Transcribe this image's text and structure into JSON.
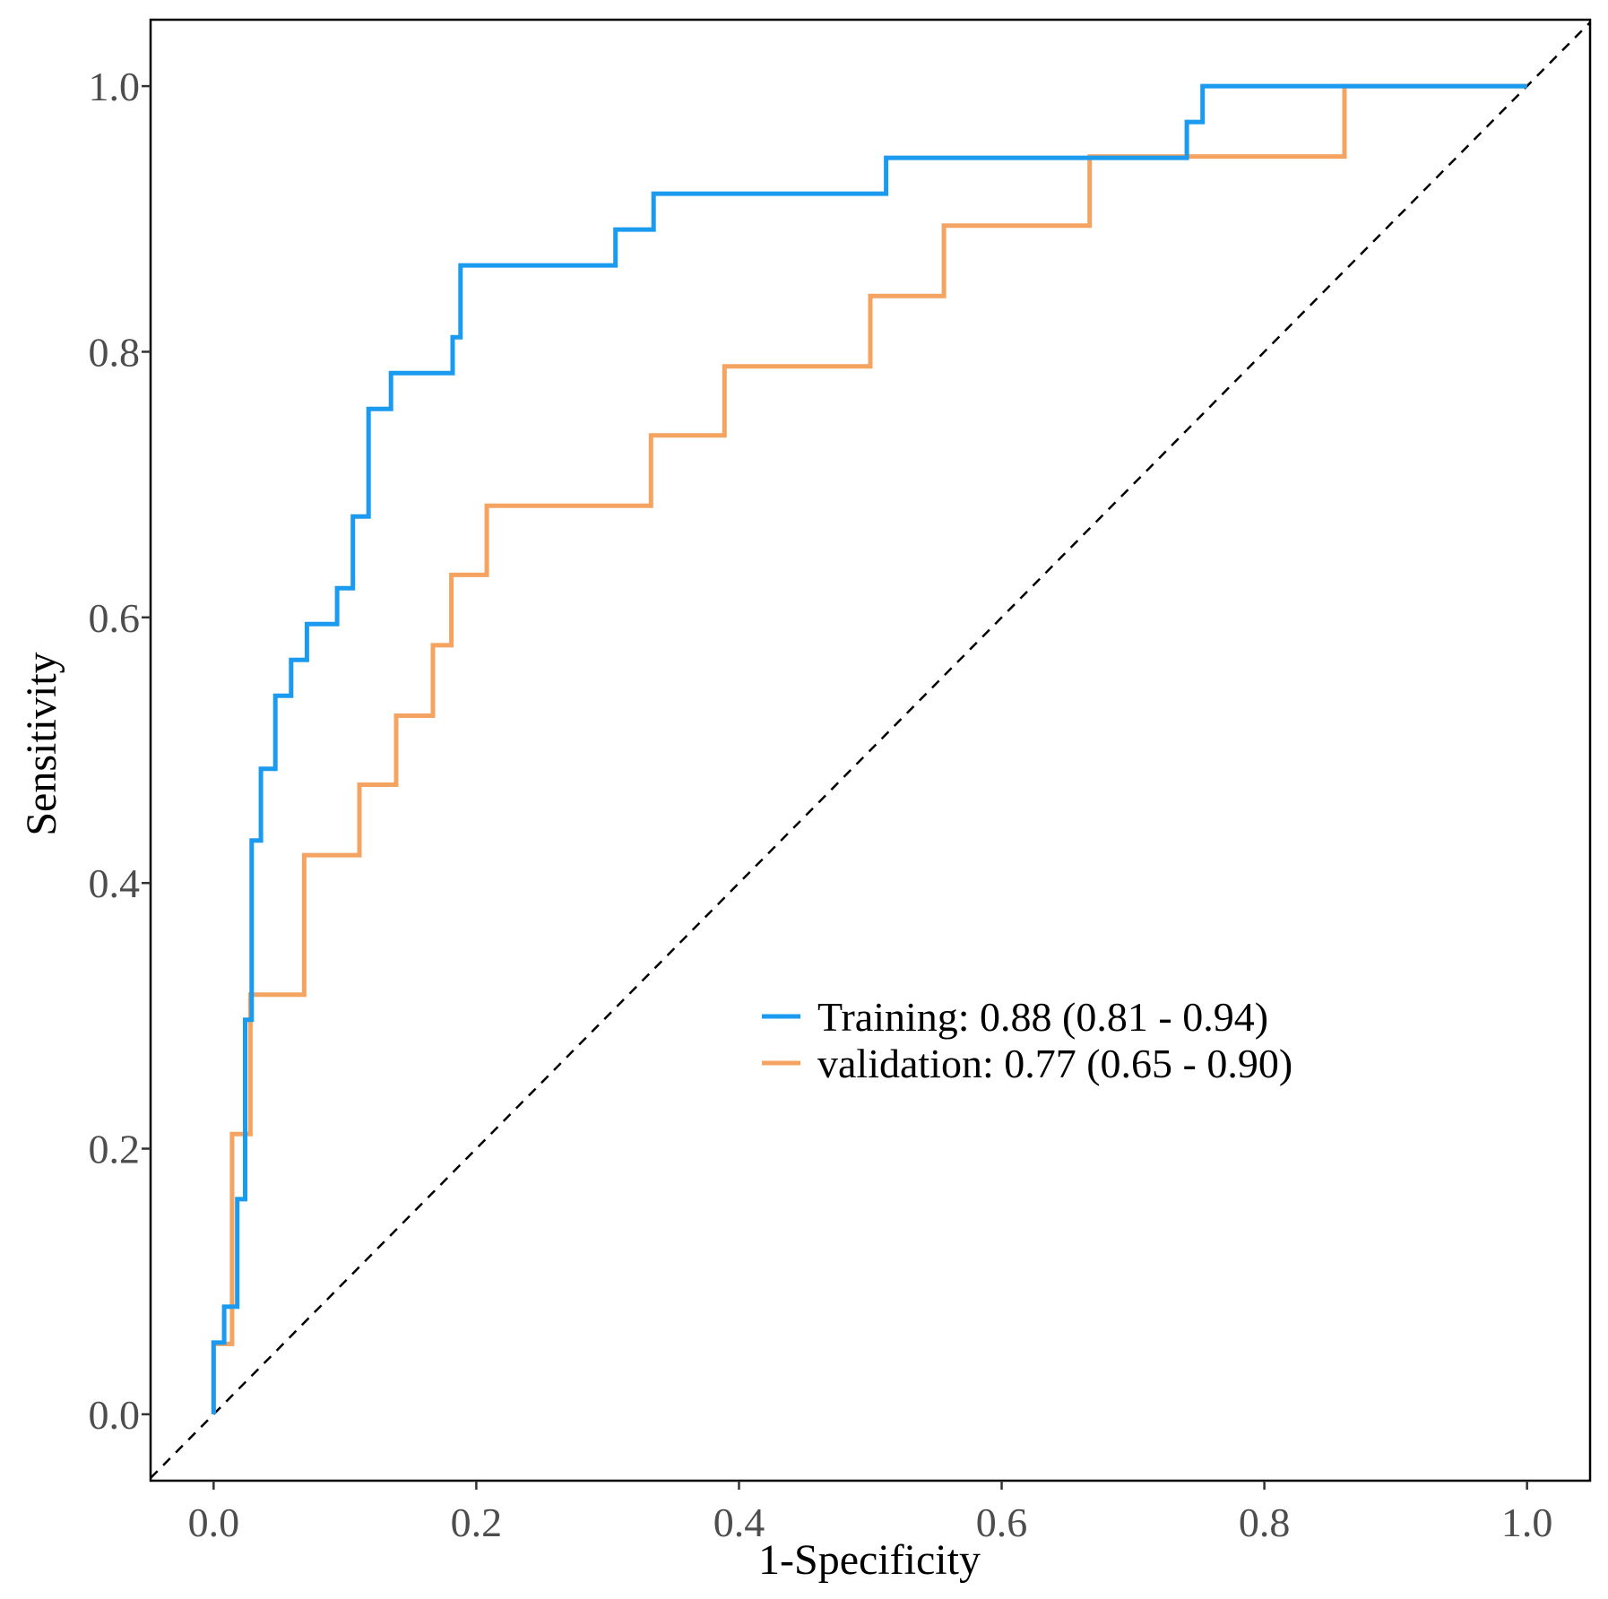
{
  "chart_data": {
    "type": "line",
    "title": "",
    "xlabel": "1-Specificity",
    "ylabel": "Sensitivity",
    "xlim": [
      -0.048,
      1.048
    ],
    "ylim": [
      -0.05,
      1.05
    ],
    "x_ticks": [
      0.0,
      0.2,
      0.4,
      0.6,
      0.8,
      1.0
    ],
    "x_tick_labels": [
      "0.0",
      "0.2",
      "0.4",
      "0.6",
      "0.8",
      "1.0"
    ],
    "y_ticks": [
      0.0,
      0.2,
      0.4,
      0.6,
      0.8,
      1.0
    ],
    "y_tick_labels": [
      "0.0",
      "0.2",
      "0.4",
      "0.6",
      "0.8",
      "1.0"
    ],
    "grid": false,
    "legend_position": "center-right",
    "reference_line": {
      "name": "chance",
      "points": [
        [
          0,
          0
        ],
        [
          1,
          1
        ]
      ],
      "style": "dashed",
      "color": "#000000"
    },
    "series": [
      {
        "name": "Training",
        "legend_label": "Training: 0.88 (0.81 - 0.94)",
        "auc": 0.88,
        "ci": [
          0.81,
          0.94
        ],
        "color": "#1a9bf0",
        "points": [
          [
            0.0,
            0.0
          ],
          [
            0.0,
            0.054
          ],
          [
            0.008,
            0.054
          ],
          [
            0.008,
            0.081
          ],
          [
            0.018,
            0.081
          ],
          [
            0.018,
            0.162
          ],
          [
            0.024,
            0.162
          ],
          [
            0.024,
            0.297
          ],
          [
            0.029,
            0.297
          ],
          [
            0.029,
            0.432
          ],
          [
            0.036,
            0.432
          ],
          [
            0.036,
            0.486
          ],
          [
            0.047,
            0.486
          ],
          [
            0.047,
            0.541
          ],
          [
            0.059,
            0.541
          ],
          [
            0.059,
            0.568
          ],
          [
            0.071,
            0.568
          ],
          [
            0.071,
            0.595
          ],
          [
            0.094,
            0.595
          ],
          [
            0.094,
            0.622
          ],
          [
            0.106,
            0.622
          ],
          [
            0.106,
            0.676
          ],
          [
            0.118,
            0.676
          ],
          [
            0.118,
            0.757
          ],
          [
            0.135,
            0.757
          ],
          [
            0.135,
            0.784
          ],
          [
            0.182,
            0.784
          ],
          [
            0.182,
            0.811
          ],
          [
            0.188,
            0.811
          ],
          [
            0.188,
            0.865
          ],
          [
            0.306,
            0.865
          ],
          [
            0.306,
            0.892
          ],
          [
            0.335,
            0.892
          ],
          [
            0.335,
            0.919
          ],
          [
            0.512,
            0.919
          ],
          [
            0.512,
            0.946
          ],
          [
            0.741,
            0.946
          ],
          [
            0.741,
            0.973
          ],
          [
            0.753,
            0.973
          ],
          [
            0.753,
            1.0
          ],
          [
            1.0,
            1.0
          ]
        ]
      },
      {
        "name": "validation",
        "legend_label": "validation: 0.77 (0.65 - 0.90)",
        "auc": 0.77,
        "ci": [
          0.65,
          0.9
        ],
        "color": "#f4a460",
        "points": [
          [
            0.0,
            0.0
          ],
          [
            0.0,
            0.053
          ],
          [
            0.014,
            0.053
          ],
          [
            0.014,
            0.211
          ],
          [
            0.028,
            0.211
          ],
          [
            0.028,
            0.316
          ],
          [
            0.069,
            0.316
          ],
          [
            0.069,
            0.421
          ],
          [
            0.111,
            0.421
          ],
          [
            0.111,
            0.474
          ],
          [
            0.139,
            0.474
          ],
          [
            0.139,
            0.526
          ],
          [
            0.167,
            0.526
          ],
          [
            0.167,
            0.579
          ],
          [
            0.181,
            0.579
          ],
          [
            0.181,
            0.632
          ],
          [
            0.208,
            0.632
          ],
          [
            0.208,
            0.684
          ],
          [
            0.333,
            0.684
          ],
          [
            0.333,
            0.737
          ],
          [
            0.389,
            0.737
          ],
          [
            0.389,
            0.789
          ],
          [
            0.5,
            0.789
          ],
          [
            0.5,
            0.842
          ],
          [
            0.556,
            0.842
          ],
          [
            0.556,
            0.895
          ],
          [
            0.667,
            0.895
          ],
          [
            0.667,
            0.947
          ],
          [
            0.861,
            0.947
          ],
          [
            0.861,
            1.0
          ],
          [
            1.0,
            1.0
          ]
        ]
      }
    ]
  }
}
